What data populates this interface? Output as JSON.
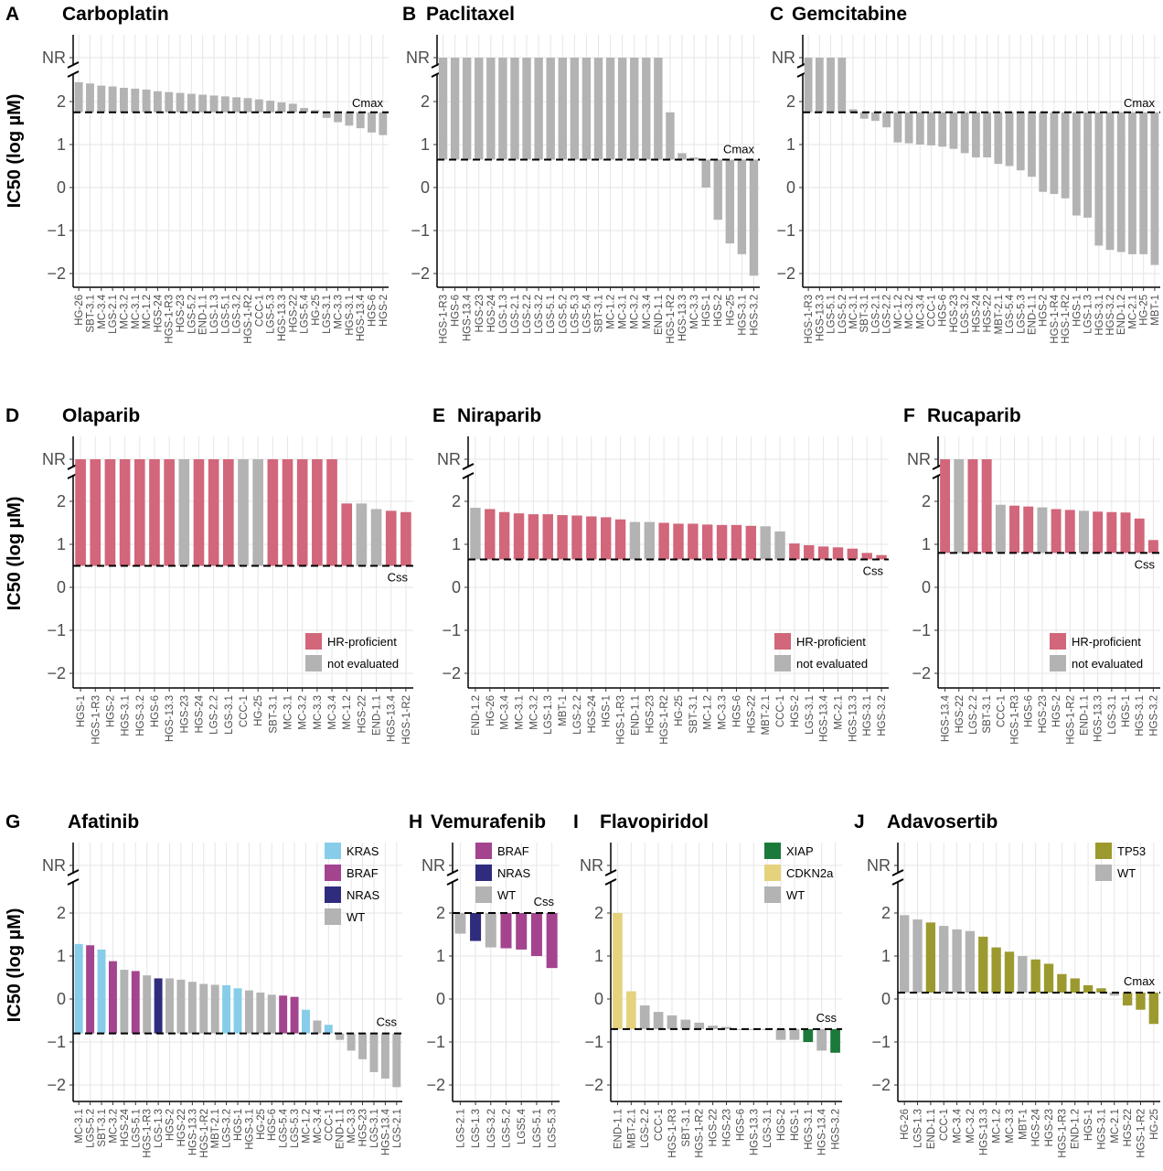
{
  "figure": {
    "y_axis_label": "IC50 (log µM)",
    "nr_label": "NR"
  },
  "legend_sets": {
    "hr": [
      {
        "label": "HR-proficient",
        "color": "#d2667a"
      },
      {
        "label": "not evaluated",
        "color": "#b3b3b3"
      }
    ],
    "afatinib": [
      {
        "label": "KRAS",
        "color": "#87cdea"
      },
      {
        "label": "BRAF",
        "color": "#a4448f"
      },
      {
        "label": "NRAS",
        "color": "#2f2c7e"
      },
      {
        "label": "WT",
        "color": "#b3b3b3"
      }
    ],
    "vemurafenib": [
      {
        "label": "BRAF",
        "color": "#a4448f"
      },
      {
        "label": "NRAS",
        "color": "#2f2c7e"
      },
      {
        "label": "WT",
        "color": "#b3b3b3"
      }
    ],
    "flavopiridol": [
      {
        "label": "XIAP",
        "color": "#1b7a3a"
      },
      {
        "label": "CDKN2a",
        "color": "#e6d27d"
      },
      {
        "label": "WT",
        "color": "#b3b3b3"
      }
    ],
    "adavosertib": [
      {
        "label": "TP53",
        "color": "#9c9a2e"
      },
      {
        "label": "WT",
        "color": "#b3b3b3"
      }
    ]
  },
  "chart_data": [
    {
      "letter": "A",
      "title": "Carboplatin",
      "type": "bar",
      "ylim": [
        -2,
        2.5
      ],
      "yticks": [
        -2,
        -1,
        0,
        1,
        2
      ],
      "nr": true,
      "reference": {
        "label": "Cmax",
        "value": 1.75
      },
      "categories": [
        "HG-26",
        "SBT-3.1",
        "MC-3.4",
        "LGS-2.1",
        "MC-3.2",
        "MC-3.1",
        "MC-1.2",
        "HGS-24",
        "HGS-1-R3",
        "HGS-23",
        "LGS-5.2",
        "END-1.1",
        "LGS-1.3",
        "LGS-5.1",
        "LGS-3.2",
        "HGS-1-R2",
        "CCC-1",
        "LGS-5.3",
        "HGS-13.3",
        "HGS-22",
        "LGS-5.4",
        "HG-25",
        "LGS-3.1",
        "MC-3.3",
        "HGS-3.1",
        "HGS-13.4",
        "HGS-6",
        "HGS-2"
      ],
      "values": [
        2.45,
        2.42,
        2.37,
        2.35,
        2.32,
        2.3,
        2.28,
        2.24,
        2.22,
        2.2,
        2.18,
        2.16,
        2.14,
        2.12,
        2.1,
        2.08,
        2.05,
        2.02,
        1.98,
        1.95,
        1.85,
        1.8,
        1.62,
        1.52,
        1.44,
        1.38,
        1.28,
        1.22
      ],
      "colors": {
        "default": "#b3b3b3"
      }
    },
    {
      "letter": "B",
      "title": "Paclitaxel",
      "type": "bar",
      "ylim": [
        -2,
        2.5
      ],
      "yticks": [
        -2,
        -1,
        0,
        1,
        2
      ],
      "nr": true,
      "reference": {
        "label": "Cmax",
        "value": 0.65
      },
      "categories": [
        "HGS-1-R3",
        "HGS-6",
        "HGS-13.4",
        "HGS-23",
        "HGS-24",
        "LGS-1.3",
        "LGS-2.1",
        "LGS-2.2",
        "LGS-3.2",
        "LGS-5.1",
        "LGS-5.2",
        "LGS-5.3",
        "LGS-5.4",
        "SBT-3.1",
        "MC-1.2",
        "MC-3.1",
        "MC-3.2",
        "MC-3.4",
        "END-1.1",
        "HGS-1-R2",
        "HGS-13.3",
        "MC-3.3",
        "HGS-1",
        "HGS-2",
        "HG-25",
        "HGS-3.1",
        "HGS-3.2"
      ],
      "values": [
        "NR",
        "NR",
        "NR",
        "NR",
        "NR",
        "NR",
        "NR",
        "NR",
        "NR",
        "NR",
        "NR",
        "NR",
        "NR",
        "NR",
        "NR",
        "NR",
        "NR",
        "NR",
        "NR",
        1.75,
        0.8,
        0.7,
        0.0,
        -0.75,
        -1.3,
        -1.55,
        -2.05
      ],
      "colors": {
        "default": "#b3b3b3"
      }
    },
    {
      "letter": "C",
      "title": "Gemcitabine",
      "type": "bar",
      "ylim": [
        -2,
        2.5
      ],
      "yticks": [
        -2,
        -1,
        0,
        1,
        2
      ],
      "nr": true,
      "reference": {
        "label": "Cmax",
        "value": 1.75
      },
      "categories": [
        "HGS-1-R3",
        "HGS-13.3",
        "LGS-5.1",
        "LGS-5.2",
        "MC-3.1",
        "SBT-3.1",
        "LGS-2.1",
        "LGS-2.2",
        "MC-1.2",
        "MC-3.2",
        "MC-3.4",
        "CCC-1",
        "HGS-6",
        "HGS-23",
        "LGS-3.2",
        "HGS-24",
        "HGS-22",
        "MBT-2.1",
        "LGS-5.4",
        "LGS-5.3",
        "END-1.1",
        "HGS-2",
        "HGS-1-R4",
        "HGS-1-R2",
        "HGS-1",
        "LGS-1.3",
        "HGS-3.1",
        "HGS-3.2",
        "END-1.2",
        "MC-2.1",
        "HG-25",
        "MBT-1"
      ],
      "values": [
        "NR",
        "NR",
        "NR",
        "NR",
        1.82,
        1.6,
        1.55,
        1.4,
        1.05,
        1.03,
        1.0,
        0.98,
        0.95,
        0.9,
        0.8,
        0.7,
        0.7,
        0.55,
        0.5,
        0.4,
        0.25,
        -0.1,
        -0.15,
        -0.25,
        -0.65,
        -0.7,
        -1.35,
        -1.45,
        -1.5,
        -1.55,
        -1.55,
        -1.8
      ],
      "colors": {
        "default": "#b3b3b3"
      }
    },
    {
      "letter": "D",
      "title": "Olaparib",
      "type": "bar",
      "ylim": [
        -2,
        2.5
      ],
      "yticks": [
        -2,
        -1,
        0,
        1,
        2
      ],
      "nr": true,
      "reference": {
        "label": "Css",
        "value": 0.5
      },
      "categories": [
        "HGS-1",
        "HGS-1-R3",
        "HGS-2",
        "HGS-3.1",
        "HGS-3.2",
        "HGS-6",
        "HGS-13.3",
        "HGS-23",
        "HGS-24",
        "LGS-2.2",
        "LGS-3.1",
        "CCC-1",
        "HG-25",
        "SBT-3.1",
        "MC-3.1",
        "MC-3.2",
        "MC-3.3",
        "MC-3.4",
        "MC-1.2",
        "HGS-22",
        "END-1.1",
        "HGS-13.4",
        "HGS-1-R2"
      ],
      "values": [
        "NR",
        "NR",
        "NR",
        "NR",
        "NR",
        "NR",
        "NR",
        "NR",
        "NR",
        "NR",
        "NR",
        "NR",
        "NR",
        "NR",
        "NR",
        "NR",
        "NR",
        "NR",
        1.95,
        1.95,
        1.82,
        1.78,
        1.75
      ],
      "groups": [
        "h",
        "h",
        "h",
        "h",
        "h",
        "h",
        "h",
        "n",
        "h",
        "h",
        "h",
        "n",
        "n",
        "h",
        "h",
        "h",
        "h",
        "h",
        "h",
        "n",
        "n",
        "h",
        "h"
      ],
      "colors": {
        "h": "#d2667a",
        "n": "#b3b3b3"
      },
      "legend": "hr"
    },
    {
      "letter": "E",
      "title": "Niraparib",
      "type": "bar",
      "ylim": [
        -2,
        2.5
      ],
      "yticks": [
        -2,
        -1,
        0,
        1,
        2
      ],
      "nr": true,
      "reference": {
        "label": "Css",
        "value": 0.65
      },
      "categories": [
        "END-1.2",
        "HG-26",
        "MC-3.4",
        "MC-3.1",
        "MC-3.2",
        "LGS-1.3",
        "MBT-1",
        "LGS-2.2",
        "HGS-24",
        "HGS-1",
        "HGS-1-R3",
        "END-1.1",
        "HGS-23",
        "HGS-1-R2",
        "HG-25",
        "SBT-3.1",
        "MC-1.2",
        "MC-3.3",
        "HGS-6",
        "HGS-22",
        "MBT-2.1",
        "CCC-1",
        "HGS-2",
        "LGS-3.1",
        "HGS-13.4",
        "MC-2.1",
        "HGS-13.3",
        "HGS-3.1",
        "HGS-3.2"
      ],
      "values": [
        1.85,
        1.82,
        1.75,
        1.72,
        1.7,
        1.7,
        1.68,
        1.67,
        1.65,
        1.63,
        1.58,
        1.52,
        1.52,
        1.5,
        1.48,
        1.48,
        1.46,
        1.45,
        1.45,
        1.43,
        1.42,
        1.3,
        1.02,
        0.98,
        0.95,
        0.93,
        0.9,
        0.8,
        0.75
      ],
      "groups": [
        "n",
        "h",
        "h",
        "h",
        "h",
        "h",
        "h",
        "h",
        "h",
        "h",
        "h",
        "n",
        "n",
        "h",
        "h",
        "h",
        "h",
        "h",
        "h",
        "h",
        "n",
        "n",
        "h",
        "h",
        "h",
        "h",
        "h",
        "h",
        "h"
      ],
      "colors": {
        "h": "#d2667a",
        "n": "#b3b3b3"
      },
      "legend": "hr"
    },
    {
      "letter": "F",
      "title": "Rucaparib",
      "type": "bar",
      "ylim": [
        -2,
        2.5
      ],
      "yticks": [
        -2,
        -1,
        0,
        1,
        2
      ],
      "nr": true,
      "reference": {
        "label": "Css",
        "value": 0.8
      },
      "categories": [
        "HGS-13.4",
        "HGS-22",
        "LGS-2.2",
        "SBT-3.1",
        "CCC-1",
        "HGS-1-R3",
        "HGS-6",
        "HGS-23",
        "HGS-2",
        "HGS-1-R2",
        "END-1.1",
        "HGS-13.3",
        "LGS-3.1",
        "HGS-1",
        "HGS-3.1",
        "HGS-3.2"
      ],
      "values": [
        "NR",
        "NR",
        "NR",
        "NR",
        1.92,
        1.9,
        1.88,
        1.86,
        1.82,
        1.8,
        1.78,
        1.76,
        1.75,
        1.74,
        1.6,
        1.1
      ],
      "groups": [
        "h",
        "n",
        "h",
        "h",
        "n",
        "h",
        "h",
        "n",
        "h",
        "h",
        "n",
        "h",
        "h",
        "h",
        "h",
        "h"
      ],
      "colors": {
        "h": "#d2667a",
        "n": "#b3b3b3"
      },
      "legend": "hr"
    },
    {
      "letter": "G",
      "title": "Afatinib",
      "type": "bar",
      "ylim": [
        -2,
        2.5
      ],
      "yticks": [
        -2,
        -1,
        0,
        1,
        2
      ],
      "nr": true,
      "reference": {
        "label": "Css",
        "value": -0.8
      },
      "categories": [
        "MC-3.1",
        "LGS-5.2",
        "SBT-3.1",
        "MC-3.2",
        "HGS-24",
        "LGS-5.1",
        "HGS-1-R3",
        "LGS-1.3",
        "HGS-2",
        "HGS-22",
        "HGS-13.3",
        "HGS-1-R2",
        "MBT-2.1",
        "LGS-3.2",
        "HGS-1",
        "HGS-3.1",
        "HG-25",
        "HGS-6",
        "LGS-5.4",
        "LGS-5.3",
        "MC-1.2",
        "MC-3.4",
        "CCC-1",
        "END-1.1",
        "MC-3.3",
        "HGS-23",
        "LGS-3.1",
        "HGS-13.4",
        "LGS-2.1"
      ],
      "values": [
        1.28,
        1.25,
        1.15,
        0.88,
        0.68,
        0.65,
        0.55,
        0.48,
        0.48,
        0.45,
        0.4,
        0.35,
        0.33,
        0.32,
        0.25,
        0.2,
        0.15,
        0.1,
        0.08,
        0.05,
        -0.25,
        -0.5,
        -0.6,
        -0.95,
        -1.2,
        -1.4,
        -1.7,
        -1.85,
        -2.05
      ],
      "groups": [
        "k",
        "b",
        "k",
        "b",
        "w",
        "b",
        "w",
        "n",
        "w",
        "w",
        "w",
        "w",
        "w",
        "k",
        "k",
        "w",
        "w",
        "w",
        "b",
        "b",
        "k",
        "w",
        "k",
        "w",
        "w",
        "w",
        "w",
        "w",
        "w"
      ],
      "colors": {
        "k": "#87cdea",
        "b": "#a4448f",
        "n": "#2f2c7e",
        "w": "#b3b3b3"
      },
      "legend": "afatinib"
    },
    {
      "letter": "H",
      "title": "Vemurafenib",
      "type": "bar",
      "ylim": [
        -2,
        2.5
      ],
      "yticks": [
        -2,
        -1,
        0,
        1,
        2
      ],
      "nr": true,
      "reference": {
        "label": "Css",
        "value": 2.0
      },
      "categories": [
        "LGS-2.1",
        "LGS-1.3",
        "LGS-3.2",
        "LGS-5.2",
        "LGS5.4",
        "LGS-5.1",
        "LGS-5.3"
      ],
      "values": [
        1.52,
        1.35,
        1.2,
        1.18,
        1.15,
        1.0,
        0.72
      ],
      "groups": [
        "w",
        "n",
        "w",
        "b",
        "b",
        "b",
        "b"
      ],
      "colors": {
        "b": "#a4448f",
        "n": "#2f2c7e",
        "w": "#b3b3b3"
      },
      "legend": "vemurafenib"
    },
    {
      "letter": "I",
      "title": "Flavopiridol",
      "type": "bar",
      "ylim": [
        -2,
        2.5
      ],
      "yticks": [
        -2,
        -1,
        0,
        1,
        2
      ],
      "nr": true,
      "reference": {
        "label": "Css",
        "value": -0.7
      },
      "categories": [
        "END-1.1",
        "MBT-2.1",
        "LGS-2.2",
        "CCC-1",
        "HGS-1-R3",
        "SBT-3.1",
        "HGS-1-R2",
        "HGS-22",
        "HGS-23",
        "HGS-6",
        "HGS-13.3",
        "LGS-3.1",
        "HGS-2",
        "HGS-1",
        "HGS-3.1",
        "HGS-13.4",
        "HGS-3.2"
      ],
      "values": [
        2.0,
        0.18,
        -0.15,
        -0.3,
        -0.38,
        -0.48,
        -0.55,
        -0.62,
        -0.65,
        -0.7,
        -0.72,
        -0.72,
        -0.95,
        -0.95,
        -1.0,
        -1.2,
        -1.25
      ],
      "groups": [
        "c",
        "c",
        "w",
        "w",
        "w",
        "w",
        "w",
        "w",
        "w",
        "w",
        "w",
        "w",
        "w",
        "w",
        "x",
        "w",
        "x"
      ],
      "colors": {
        "x": "#1b7a3a",
        "c": "#e6d27d",
        "w": "#b3b3b3"
      },
      "legend": "flavopiridol"
    },
    {
      "letter": "J",
      "title": "Adavosertib",
      "type": "bar",
      "ylim": [
        -2,
        2.5
      ],
      "yticks": [
        -2,
        -1,
        0,
        1,
        2
      ],
      "nr": true,
      "reference": {
        "label": "Cmax",
        "value": 0.15
      },
      "categories": [
        "HG-26",
        "LGS-1.3",
        "END-1.1",
        "CCC-1",
        "MC-3.4",
        "MC-3.2",
        "HGS-13.3",
        "MC-1.2",
        "MC-3.3",
        "MBT-1",
        "HGS-24",
        "HGS-23",
        "HGS-1-R3",
        "END-1.2",
        "HGS-1",
        "HGS-3.1",
        "MC-2.1",
        "HGS-22",
        "HGS-1-R2",
        "HG-25"
      ],
      "values": [
        1.95,
        1.85,
        1.78,
        1.7,
        1.62,
        1.58,
        1.45,
        1.2,
        1.1,
        1.0,
        0.92,
        0.82,
        0.58,
        0.48,
        0.32,
        0.25,
        0.08,
        -0.15,
        -0.25,
        -0.58
      ],
      "groups": [
        "w",
        "w",
        "t",
        "w",
        "w",
        "w",
        "t",
        "t",
        "t",
        "w",
        "t",
        "t",
        "t",
        "t",
        "t",
        "t",
        "w",
        "t",
        "t",
        "t"
      ],
      "colors": {
        "t": "#9c9a2e",
        "w": "#b3b3b3"
      },
      "legend": "adavosertib"
    }
  ]
}
